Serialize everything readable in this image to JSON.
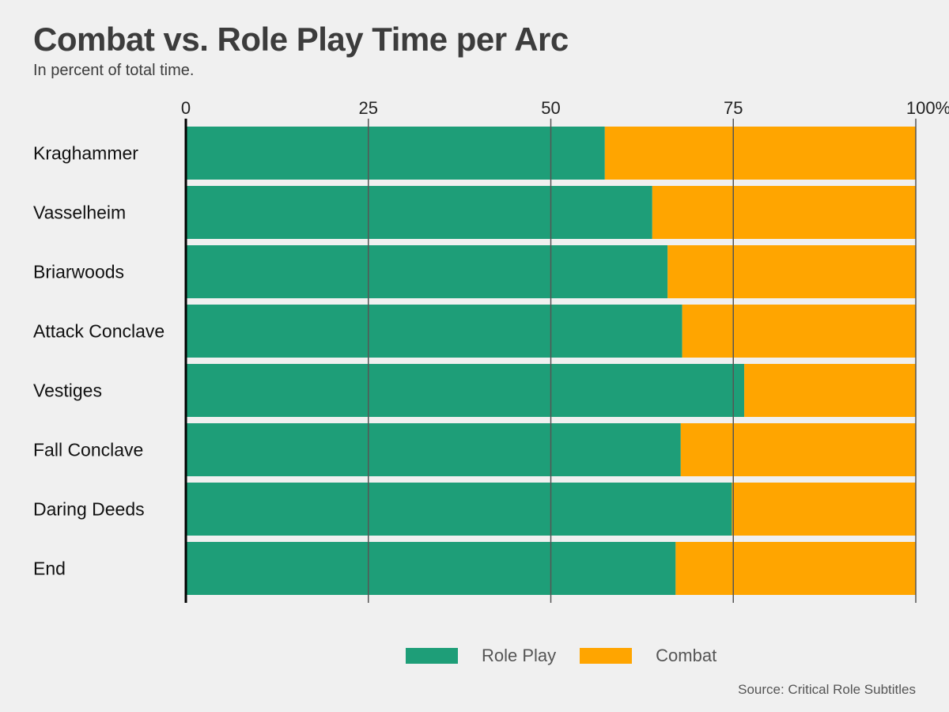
{
  "title": "Combat vs. Role Play Time per Arc",
  "subtitle": "In percent of total time.",
  "source": "Source: Critical Role Subtitles",
  "colors": {
    "role_play": "#1e9e78",
    "combat": "#ffa500",
    "background": "#f0f0f0",
    "gridline": "#555555",
    "axis": "#000000"
  },
  "chart_data": {
    "type": "bar",
    "orientation": "horizontal",
    "stacked": true,
    "categories": [
      "Kraghammer",
      "Vasselheim",
      "Briarwoods",
      "Attack Conclave",
      "Vestiges",
      "Fall Conclave",
      "Daring Deeds",
      "End"
    ],
    "series": [
      {
        "name": "Role Play",
        "values": [
          57.4,
          63.9,
          66.0,
          68.0,
          76.5,
          67.8,
          74.8,
          67.1
        ]
      },
      {
        "name": "Combat",
        "values": [
          42.6,
          36.1,
          34.0,
          32.0,
          23.5,
          32.2,
          25.2,
          32.9
        ]
      }
    ],
    "xlim": [
      0,
      100
    ],
    "ticks": [
      0,
      25,
      50,
      75,
      100
    ],
    "tick_labels": [
      "0",
      "25",
      "50",
      "75",
      "100%"
    ],
    "legend": {
      "position": "bottom",
      "items": [
        "Role Play",
        "Combat"
      ]
    },
    "grid": true
  }
}
